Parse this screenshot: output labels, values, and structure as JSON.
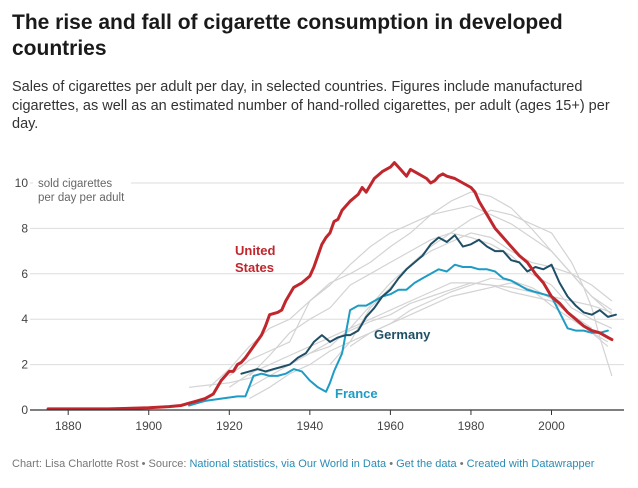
{
  "title": "The rise and fall of cigarette consumption in developed countries",
  "subtitle": "Sales of cigarettes per adult per day, in selected countries. Figures include manufactured cigarettes, as well as an estimated number of hand-rolled cigarettes, per adult (ages 15+) per day.",
  "footer": {
    "prefix": "Chart: Lisa Charlotte Rost • Source: ",
    "source": "National statistics, via Our World in Data",
    "sep1": " • ",
    "get_data": "Get the data",
    "sep2": " • ",
    "created": "Created with Datawrapper"
  },
  "colors": {
    "us": "#c0272d",
    "germany": "#1e4f66",
    "france": "#1f9cc4",
    "others": "#d3d3d3",
    "grid": "#dddddd",
    "axis": "#333333"
  },
  "chart_data": {
    "type": "line",
    "title": "",
    "xlabel": "",
    "ylabel": "sold cigarettes per day per adult",
    "xlim": [
      1873,
      2018
    ],
    "ylim": [
      0,
      11
    ],
    "x_ticks": [
      1880,
      1900,
      1920,
      1940,
      1960,
      1980,
      2000
    ],
    "y_ticks": [
      0,
      2,
      4,
      6,
      8,
      10
    ],
    "grid": true,
    "legend": "none",
    "series": [
      {
        "name": "United States",
        "color": "#c0272d",
        "highlight": true,
        "x": [
          1875,
          1880,
          1890,
          1900,
          1905,
          1908,
          1910,
          1912,
          1914,
          1916,
          1918,
          1920,
          1921,
          1922,
          1923,
          1924,
          1926,
          1928,
          1929,
          1930,
          1932,
          1933,
          1934,
          1936,
          1938,
          1940,
          1941,
          1942,
          1943,
          1944,
          1945,
          1946,
          1947,
          1948,
          1950,
          1952,
          1953,
          1954,
          1956,
          1958,
          1960,
          1961,
          1962,
          1963,
          1964,
          1965,
          1967,
          1969,
          1970,
          1971,
          1972,
          1973,
          1974,
          1976,
          1978,
          1980,
          1981,
          1982,
          1983,
          1984,
          1986,
          1988,
          1990,
          1992,
          1994,
          1996,
          1998,
          2000,
          2002,
          2004,
          2006,
          2008,
          2010,
          2012,
          2014,
          2015
        ],
        "y": [
          0.05,
          0.05,
          0.05,
          0.1,
          0.15,
          0.2,
          0.3,
          0.4,
          0.5,
          0.7,
          1.3,
          1.7,
          1.7,
          2.0,
          2.1,
          2.3,
          2.8,
          3.3,
          3.7,
          4.2,
          4.3,
          4.4,
          4.8,
          5.4,
          5.6,
          5.9,
          6.3,
          6.8,
          7.3,
          7.6,
          7.8,
          8.3,
          8.4,
          8.8,
          9.2,
          9.5,
          9.8,
          9.6,
          10.2,
          10.5,
          10.7,
          10.9,
          10.7,
          10.5,
          10.3,
          10.6,
          10.4,
          10.2,
          10.0,
          10.1,
          10.3,
          10.4,
          10.3,
          10.2,
          10.0,
          9.8,
          9.6,
          9.2,
          8.9,
          8.6,
          8.0,
          7.6,
          7.2,
          6.8,
          6.5,
          6.0,
          5.6,
          5.0,
          4.7,
          4.3,
          4.0,
          3.7,
          3.5,
          3.4,
          3.2,
          3.1
        ]
      },
      {
        "name": "Germany",
        "color": "#1e4f66",
        "highlight": true,
        "x": [
          1923,
          1925,
          1927,
          1929,
          1931,
          1933,
          1935,
          1937,
          1939,
          1941,
          1943,
          1945,
          1947,
          1949,
          1950,
          1952,
          1954,
          1956,
          1958,
          1960,
          1962,
          1964,
          1966,
          1968,
          1970,
          1972,
          1974,
          1976,
          1978,
          1980,
          1982,
          1984,
          1986,
          1988,
          1990,
          1992,
          1994,
          1996,
          1998,
          2000,
          2002,
          2004,
          2006,
          2008,
          2010,
          2012,
          2014,
          2016
        ],
        "y": [
          1.6,
          1.7,
          1.8,
          1.7,
          1.8,
          1.9,
          2.0,
          2.3,
          2.5,
          3.0,
          3.3,
          3.0,
          3.2,
          3.3,
          3.3,
          3.5,
          4.1,
          4.5,
          5.0,
          5.3,
          5.8,
          6.2,
          6.5,
          6.8,
          7.3,
          7.6,
          7.4,
          7.7,
          7.2,
          7.3,
          7.5,
          7.2,
          7.0,
          7.0,
          6.6,
          6.5,
          6.1,
          6.3,
          6.2,
          6.4,
          5.6,
          5.0,
          4.6,
          4.3,
          4.2,
          4.4,
          4.1,
          4.2
        ]
      },
      {
        "name": "France",
        "color": "#1f9cc4",
        "highlight": true,
        "x": [
          1910,
          1912,
          1914,
          1916,
          1918,
          1920,
          1922,
          1924,
          1926,
          1928,
          1930,
          1932,
          1934,
          1936,
          1938,
          1940,
          1942,
          1944,
          1945,
          1946,
          1948,
          1950,
          1952,
          1954,
          1956,
          1958,
          1960,
          1962,
          1964,
          1966,
          1968,
          1970,
          1972,
          1974,
          1976,
          1978,
          1980,
          1982,
          1984,
          1986,
          1988,
          1990,
          1992,
          1994,
          1996,
          1998,
          2000,
          2002,
          2004,
          2006,
          2008,
          2010,
          2012,
          2014
        ],
        "y": [
          0.2,
          0.3,
          0.4,
          0.45,
          0.5,
          0.55,
          0.6,
          0.6,
          1.5,
          1.6,
          1.5,
          1.5,
          1.6,
          1.8,
          1.7,
          1.3,
          1.0,
          0.8,
          1.2,
          1.7,
          2.5,
          4.4,
          4.6,
          4.6,
          4.8,
          5.0,
          5.1,
          5.3,
          5.3,
          5.6,
          5.8,
          6.0,
          6.2,
          6.1,
          6.4,
          6.3,
          6.3,
          6.2,
          6.2,
          6.1,
          5.8,
          5.7,
          5.5,
          5.3,
          5.2,
          5.1,
          5.0,
          4.3,
          3.6,
          3.5,
          3.5,
          3.4,
          3.4,
          3.5
        ]
      },
      {
        "name": "",
        "color": "#d3d3d3",
        "x": [
          1915,
          1920,
          1925,
          1930,
          1935,
          1940,
          1945,
          1950,
          1955,
          1960,
          1965,
          1970,
          1975,
          1980,
          1985,
          1990,
          1995,
          2000,
          2005,
          2010,
          2015
        ],
        "y": [
          1.0,
          1.8,
          2.8,
          3.6,
          4.0,
          4.8,
          5.6,
          6.0,
          6.5,
          7.2,
          7.8,
          8.6,
          9.2,
          9.6,
          9.4,
          8.9,
          8.0,
          7.0,
          6.0,
          5.0,
          4.2
        ]
      },
      {
        "name": "",
        "color": "#d3d3d3",
        "x": [
          1920,
          1925,
          1930,
          1935,
          1940,
          1945,
          1950,
          1955,
          1960,
          1965,
          1970,
          1975,
          1980,
          1985,
          1990,
          1995,
          2000,
          2005,
          2010,
          2015
        ],
        "y": [
          1.5,
          2.2,
          2.6,
          3.0,
          4.8,
          5.5,
          6.4,
          7.2,
          7.8,
          8.2,
          8.6,
          8.8,
          9.0,
          8.6,
          8.2,
          7.6,
          7.0,
          6.0,
          5.0,
          4.4
        ]
      },
      {
        "name": "",
        "color": "#d3d3d3",
        "x": [
          1925,
          1930,
          1935,
          1940,
          1945,
          1950,
          1955,
          1960,
          1965,
          1970,
          1975,
          1980,
          1985,
          1990,
          1995,
          2000,
          2005,
          2008,
          2010,
          2012,
          2015
        ],
        "y": [
          1.0,
          1.5,
          2.0,
          2.5,
          2.8,
          3.6,
          4.6,
          5.6,
          6.4,
          7.2,
          7.8,
          8.4,
          8.8,
          8.6,
          8.2,
          7.8,
          6.5,
          5.4,
          4.5,
          3.2,
          1.5
        ]
      },
      {
        "name": "",
        "color": "#d3d3d3",
        "x": [
          1925,
          1930,
          1935,
          1940,
          1945,
          1950,
          1955,
          1960,
          1965,
          1970,
          1975,
          1980,
          1985,
          1990,
          1995,
          2000,
          2005,
          2010,
          2015
        ],
        "y": [
          1.5,
          2.4,
          3.4,
          4.0,
          4.5,
          5.5,
          6.0,
          6.5,
          7.0,
          7.5,
          7.8,
          7.6,
          7.3,
          6.8,
          6.0,
          5.5,
          4.5,
          4.0,
          3.6
        ]
      },
      {
        "name": "",
        "color": "#d3d3d3",
        "x": [
          1920,
          1925,
          1930,
          1935,
          1940,
          1945,
          1950,
          1955,
          1960,
          1965,
          1970,
          1975,
          1980,
          1985,
          1990,
          1995,
          2000,
          2005,
          2010,
          2015
        ],
        "y": [
          1.0,
          1.6,
          2.0,
          2.4,
          2.8,
          3.2,
          3.6,
          4.0,
          4.4,
          4.8,
          5.2,
          5.6,
          5.6,
          5.5,
          5.4,
          5.2,
          5.0,
          4.8,
          4.6,
          4.3
        ]
      },
      {
        "name": "",
        "color": "#d3d3d3",
        "x": [
          1945,
          1950,
          1955,
          1960,
          1965,
          1970,
          1975,
          1980,
          1985,
          1990,
          1995,
          2000,
          2005,
          2010,
          2014
        ],
        "y": [
          2.0,
          3.0,
          3.4,
          3.8,
          4.2,
          4.6,
          5.0,
          5.2,
          5.4,
          5.6,
          5.3,
          4.6,
          4.0,
          3.4,
          3.0
        ]
      },
      {
        "name": "",
        "color": "#d3d3d3",
        "x": [
          1910,
          1915,
          1920,
          1925,
          1930,
          1935,
          1940,
          1945,
          1950,
          1955,
          1960,
          1965,
          1970,
          1975,
          1980,
          1985,
          1990,
          1995,
          2000,
          2005,
          2010
        ],
        "y": [
          1.0,
          1.1,
          1.2,
          1.4,
          1.7,
          2.0,
          2.5,
          3.0,
          3.5,
          3.9,
          4.2,
          4.7,
          5.0,
          5.3,
          5.6,
          5.5,
          5.2,
          5.0,
          4.8,
          4.2,
          3.6
        ]
      },
      {
        "name": "",
        "color": "#d3d3d3",
        "x": [
          1925,
          1930,
          1935,
          1940,
          1945,
          1950,
          1955,
          1960,
          1965,
          1970,
          1975,
          1980,
          1985,
          1990,
          1995,
          2000,
          2005,
          2010,
          2015
        ],
        "y": [
          0.5,
          1.0,
          1.6,
          2.0,
          2.6,
          3.0,
          4.5,
          5.4,
          6.4,
          7.0,
          7.4,
          7.8,
          7.6,
          7.0,
          6.5,
          6.3,
          6.0,
          5.5,
          4.8
        ]
      },
      {
        "name": "",
        "color": "#d3d3d3",
        "x": [
          1950,
          1955,
          1960,
          1965,
          1970,
          1975,
          1980,
          1985,
          1990,
          1995,
          2000,
          2005,
          2010,
          2014
        ],
        "y": [
          2.8,
          3.4,
          3.8,
          4.4,
          4.8,
          5.2,
          5.5,
          5.8,
          5.7,
          5.4,
          4.9,
          4.2,
          3.4,
          2.8
        ]
      }
    ],
    "annotations": [
      {
        "series": "United States",
        "lines": [
          "United",
          "States"
        ]
      },
      {
        "series": "Germany",
        "lines": [
          "Germany"
        ]
      },
      {
        "series": "France",
        "lines": [
          "France"
        ]
      }
    ]
  }
}
